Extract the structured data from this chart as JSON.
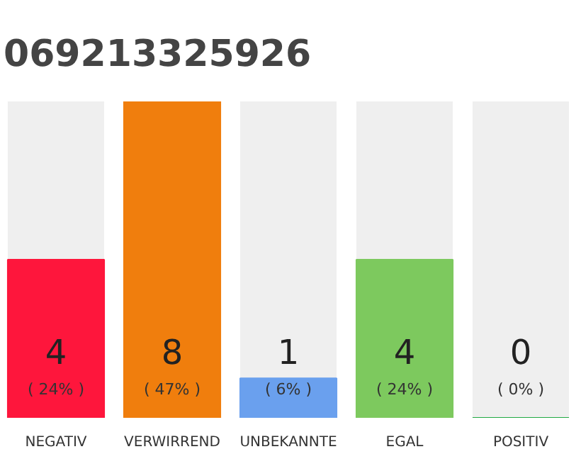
{
  "chart_data": {
    "type": "bar",
    "title": "069213325926",
    "categories": [
      "NEGATIV",
      "VERWIRREND",
      "UNBEKANNTE",
      "EGAL",
      "POSITIV"
    ],
    "values": [
      4,
      8,
      1,
      4,
      0
    ],
    "colors": [
      "#fe163c",
      "#f07e0d",
      "#6aa0ee",
      "#7dc95e",
      "#22aa44"
    ],
    "value_labels": [
      "4\n( 24% )",
      "8\n( 47% )",
      "1\n( 6% )",
      "4\n( 24% )",
      "0\n( 0% )"
    ],
    "ylim": [
      0,
      8
    ],
    "tick_labels": "x",
    "grid": false
  }
}
